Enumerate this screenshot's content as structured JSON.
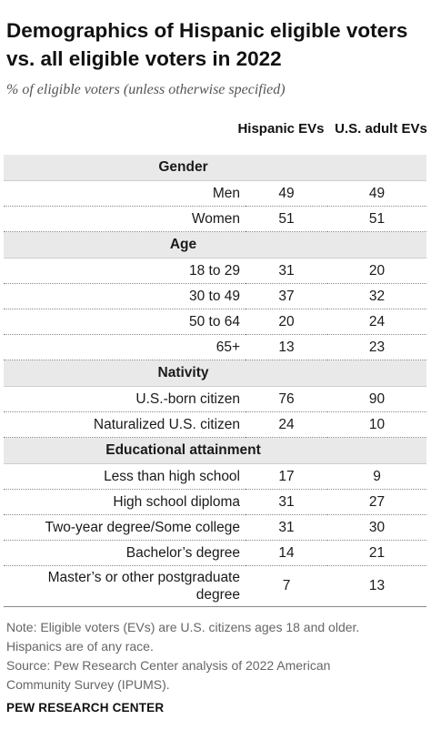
{
  "title": "Demographics of Hispanic eligible voters vs. all eligible voters in 2022",
  "subtitle": "% of eligible voters (unless otherwise specified)",
  "columns": [
    "Hispanic EVs",
    "U.S. adult EVs"
  ],
  "chart_data": {
    "type": "table",
    "title": "Demographics of Hispanic eligible voters vs. all eligible voters in 2022",
    "subtitle": "% of eligible voters (unless otherwise specified)",
    "columns": [
      "Hispanic EVs",
      "U.S. adult EVs"
    ],
    "sections": [
      {
        "name": "Gender",
        "rows": [
          {
            "label": "Men",
            "hispanic": 49,
            "us_adult": 49
          },
          {
            "label": "Women",
            "hispanic": 51,
            "us_adult": 51
          }
        ]
      },
      {
        "name": "Age",
        "rows": [
          {
            "label": "18 to 29",
            "hispanic": 31,
            "us_adult": 20
          },
          {
            "label": "30 to 49",
            "hispanic": 37,
            "us_adult": 32
          },
          {
            "label": "50 to 64",
            "hispanic": 20,
            "us_adult": 24
          },
          {
            "label": "65+",
            "hispanic": 13,
            "us_adult": 23
          }
        ]
      },
      {
        "name": "Nativity",
        "rows": [
          {
            "label": "U.S.-born citizen",
            "hispanic": 76,
            "us_adult": 90
          },
          {
            "label": "Naturalized U.S. citizen",
            "hispanic": 24,
            "us_adult": 10
          }
        ]
      },
      {
        "name": "Educational attainment",
        "rows": [
          {
            "label": "Less than high school",
            "hispanic": 17,
            "us_adult": 9
          },
          {
            "label": "High school diploma",
            "hispanic": 31,
            "us_adult": 27
          },
          {
            "label": "Two-year degree/Some college",
            "hispanic": 31,
            "us_adult": 30
          },
          {
            "label": "Bachelor’s degree",
            "hispanic": 14,
            "us_adult": 21
          },
          {
            "label": "Master’s or other postgraduate degree",
            "hispanic": 7,
            "us_adult": 13
          }
        ]
      }
    ]
  },
  "note_lines": [
    "Note: Eligible voters (EVs) are U.S. citizens ages 18 and older.",
    "Hispanics are of any race.",
    "Source: Pew Research Center analysis of 2022 American",
    "Community Survey (IPUMS)."
  ],
  "footer": "PEW RESEARCH CENTER"
}
